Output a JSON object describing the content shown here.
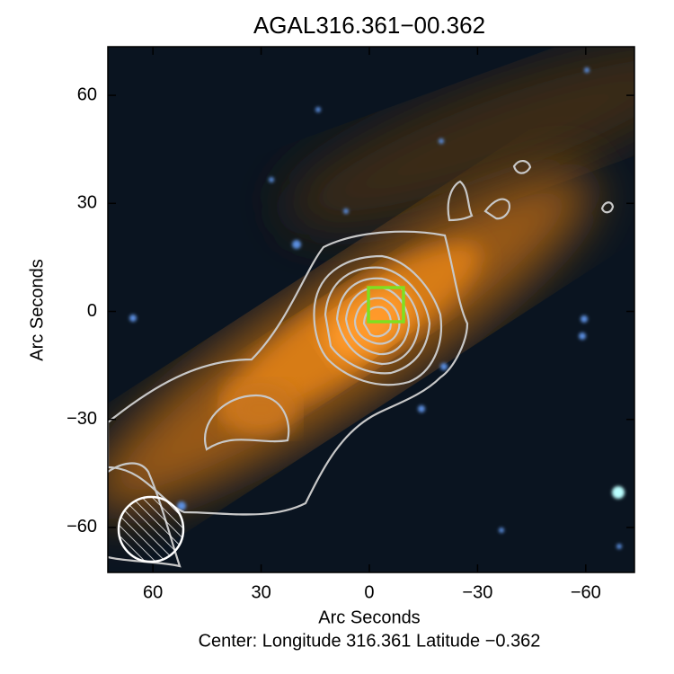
{
  "chart_data": {
    "type": "image",
    "title": "AGAL316.361−00.362",
    "x_label": "Arc Seconds",
    "y_label": "Arc Seconds",
    "footer": "Center:  Longitude 316.361 Latitude −0.362",
    "xlim": [
      72.5,
      -73.5
    ],
    "ylim": [
      -72.5,
      73.5
    ],
    "xticks": [
      60,
      30,
      0,
      {
        "value": -30,
        "label": "−30"
      },
      {
        "value": -60,
        "label": "−60"
      }
    ],
    "yticks": [
      {
        "value": -60,
        "label": "−60"
      },
      {
        "value": -30,
        "label": "−30"
      },
      0,
      30,
      60
    ]
  }
}
